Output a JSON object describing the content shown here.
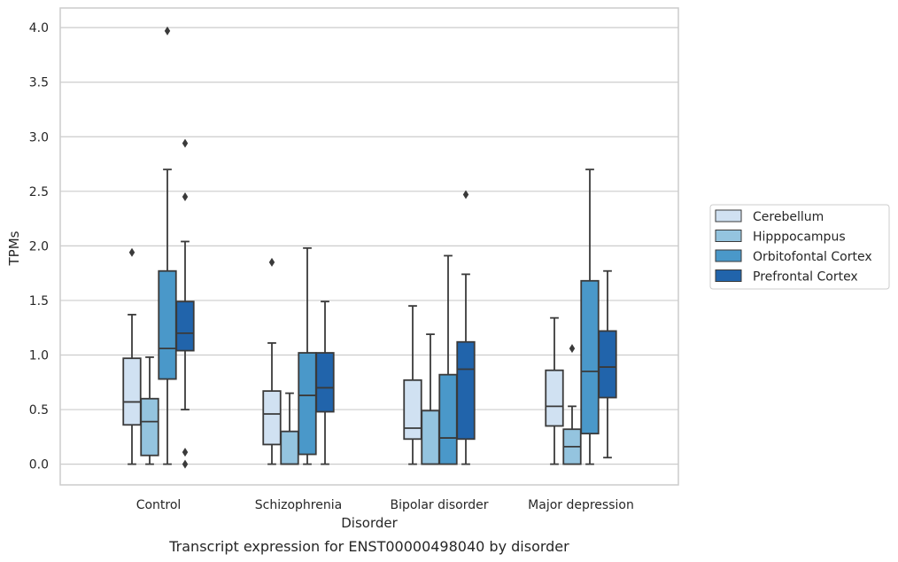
{
  "caption": "Transcript expression for ENST00000498040 by disorder",
  "chart_data": {
    "type": "boxplot",
    "xlabel": "Disorder",
    "ylabel": "TPMs",
    "ylim": [
      -0.19,
      4.18
    ],
    "yticks": [
      "0.0",
      "0.5",
      "1.0",
      "1.5",
      "2.0",
      "2.5",
      "3.0",
      "3.5",
      "4.0"
    ],
    "ytick_values": [
      0,
      0.5,
      1.0,
      1.5,
      2.0,
      2.5,
      3.0,
      3.5,
      4.0
    ],
    "grid": "horizontal",
    "legend_position": "right",
    "categories": [
      "Control",
      "Schizophrenia",
      "Bipolar disorder",
      "Major depression"
    ],
    "series": [
      {
        "name": "Cerebellum",
        "color": "#d0e1f2",
        "boxes": [
          {
            "whislo": 0,
            "q1": 0.36,
            "med": 0.57,
            "q3": 0.97,
            "whishi": 1.37,
            "fliers": [
              1.94
            ]
          },
          {
            "whislo": 0,
            "q1": 0.18,
            "med": 0.46,
            "q3": 0.67,
            "whishi": 1.11,
            "fliers": [
              1.85
            ]
          },
          {
            "whislo": 0,
            "q1": 0.23,
            "med": 0.33,
            "q3": 0.77,
            "whishi": 1.45,
            "fliers": []
          },
          {
            "whislo": 0,
            "q1": 0.35,
            "med": 0.53,
            "q3": 0.86,
            "whishi": 1.34,
            "fliers": []
          }
        ]
      },
      {
        "name": "Hipppocampus",
        "color": "#94c4df",
        "boxes": [
          {
            "whislo": 0,
            "q1": 0.08,
            "med": 0.39,
            "q3": 0.6,
            "whishi": 0.98,
            "fliers": []
          },
          {
            "whislo": 0,
            "q1": 0,
            "med": 0,
            "q3": 0.3,
            "whishi": 0.65,
            "fliers": []
          },
          {
            "whislo": 0,
            "q1": 0,
            "med": 0,
            "q3": 0.49,
            "whishi": 1.19,
            "fliers": []
          },
          {
            "whislo": 0,
            "q1": 0,
            "med": 0.16,
            "q3": 0.32,
            "whishi": 0.53,
            "fliers": [
              1.06
            ]
          }
        ]
      },
      {
        "name": "Orbitofontal Cortex",
        "color": "#4a98c9",
        "boxes": [
          {
            "whislo": 0,
            "q1": 0.78,
            "med": 1.06,
            "q3": 1.77,
            "whishi": 2.7,
            "fliers": [
              3.97
            ]
          },
          {
            "whislo": 0,
            "q1": 0.09,
            "med": 0.63,
            "q3": 1.02,
            "whishi": 1.98,
            "fliers": []
          },
          {
            "whislo": 0,
            "q1": 0,
            "med": 0.24,
            "q3": 0.82,
            "whishi": 1.91,
            "fliers": []
          },
          {
            "whislo": 0,
            "q1": 0.28,
            "med": 0.85,
            "q3": 1.68,
            "whishi": 2.7,
            "fliers": []
          }
        ]
      },
      {
        "name": "Prefrontal Cortex",
        "color": "#2164ab",
        "boxes": [
          {
            "whislo": 0.5,
            "q1": 1.04,
            "med": 1.2,
            "q3": 1.49,
            "whishi": 2.04,
            "fliers": [
              0.11,
              0,
              2.45,
              2.94
            ]
          },
          {
            "whislo": 0,
            "q1": 0.48,
            "med": 0.7,
            "q3": 1.02,
            "whishi": 1.49,
            "fliers": []
          },
          {
            "whislo": 0,
            "q1": 0.23,
            "med": 0.87,
            "q3": 1.12,
            "whishi": 1.74,
            "fliers": [
              2.47
            ]
          },
          {
            "whislo": 0.06,
            "q1": 0.61,
            "med": 0.89,
            "q3": 1.22,
            "whishi": 1.77,
            "fliers": []
          }
        ]
      }
    ]
  }
}
